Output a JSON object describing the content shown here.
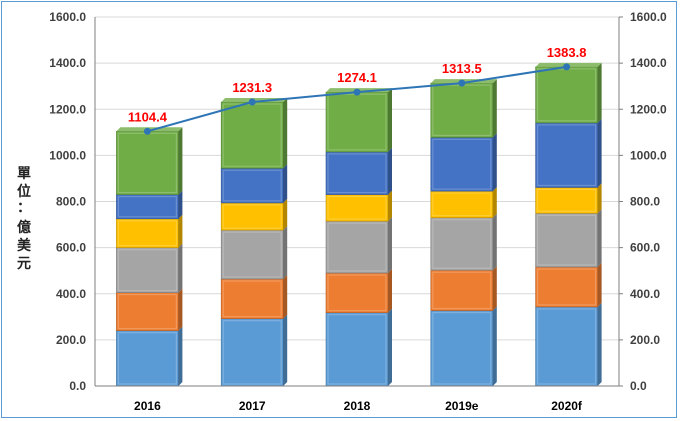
{
  "chart_data": {
    "type": "bar",
    "subtype": "stacked-3d-with-line",
    "categories": [
      "2016",
      "2017",
      "2018",
      "2019e",
      "2020f"
    ],
    "ylabel": "單位：億美元",
    "ylim": [
      0,
      1600
    ],
    "yticks": [
      "0.0",
      "200.0",
      "400.0",
      "600.0",
      "800.0",
      "1000.0",
      "1200.0",
      "1400.0",
      "1600.0"
    ],
    "y2ticks": [
      "0.0",
      "200.0",
      "400.0",
      "600.0",
      "800.0",
      "1000.0",
      "1200.0",
      "1400.0",
      "1600.0"
    ],
    "gridlines": true,
    "series": [
      {
        "color": "#5b9bd5",
        "values": [
          240,
          292,
          318,
          327,
          343
        ]
      },
      {
        "color": "#ed7d31",
        "values": [
          165,
          172,
          172,
          175,
          173
        ]
      },
      {
        "color": "#a5a5a5",
        "values": [
          195,
          212,
          225,
          228,
          233
        ]
      },
      {
        "color": "#ffc000",
        "values": [
          125,
          118,
          115,
          115,
          112
        ]
      },
      {
        "color": "#4472c4",
        "values": [
          105,
          150,
          185,
          233,
          280
        ]
      },
      {
        "color": "#70ad47",
        "values": [
          274.4,
          287.3,
          259.1,
          235.5,
          242.8
        ]
      }
    ],
    "totals": {
      "values": [
        1104.4,
        1231.3,
        1274.1,
        1313.5,
        1383.8
      ],
      "labels": [
        "1104.4",
        "1231.3",
        "1274.1",
        "1313.5",
        "1383.8"
      ],
      "line_color": "#2e75b6",
      "label_color": "#ff0000"
    }
  }
}
